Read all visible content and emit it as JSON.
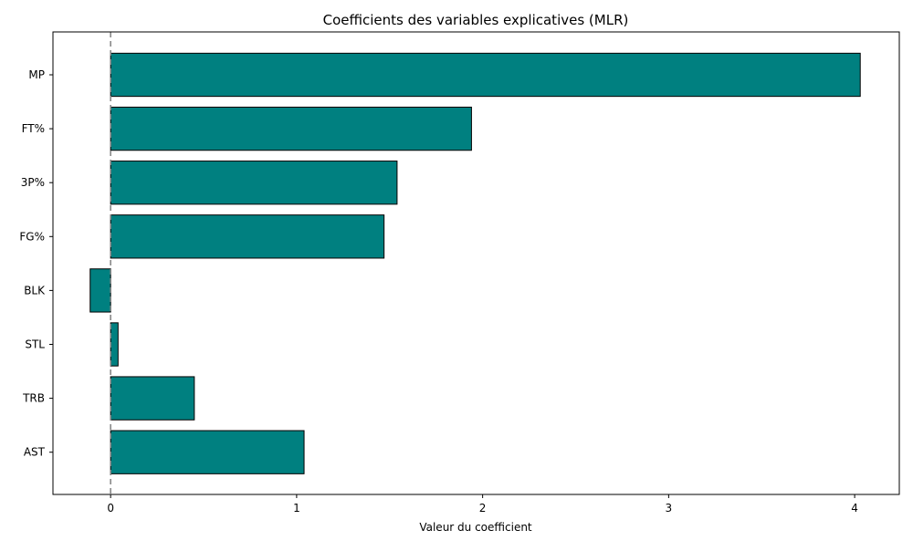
{
  "chart_data": {
    "type": "bar",
    "orientation": "horizontal",
    "title": "Coefficients des variables explicatives (MLR)",
    "xlabel": "Valeur du coefficient",
    "ylabel": "",
    "categories": [
      "MP",
      "FT%",
      "3P%",
      "FG%",
      "BLK",
      "STL",
      "TRB",
      "AST"
    ],
    "values": [
      4.03,
      1.94,
      1.54,
      1.47,
      -0.11,
      0.04,
      0.45,
      1.04
    ],
    "xlim": [
      -0.31,
      4.24
    ],
    "xticks": [
      "0",
      "1",
      "2",
      "3",
      "4"
    ],
    "reference_line": 0,
    "grid": false,
    "colors": {
      "bar_fill": "#008080",
      "bar_edge": "#000000",
      "reference_line": "#808080"
    }
  }
}
